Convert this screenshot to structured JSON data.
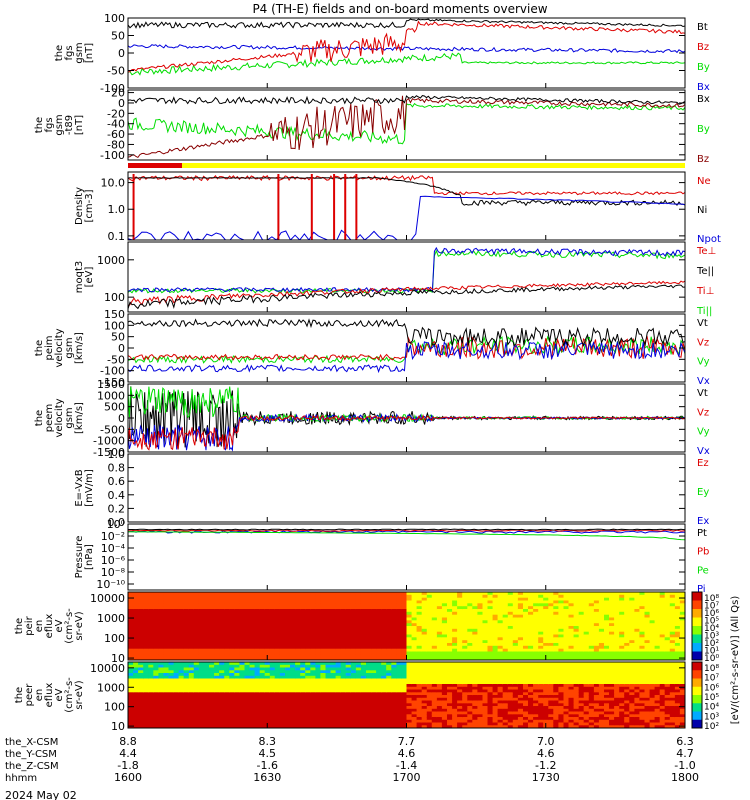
{
  "title": "P4 (TH-E) fields and on-board moments overview",
  "date_label": "2024 May 02",
  "colors": {
    "black": "#000000",
    "red": "#dd0000",
    "green": "#00dd00",
    "blue": "#0000dd",
    "darkred": "#880000",
    "yellow": "#ffff00",
    "barred": "#dd0000"
  },
  "chart_data": {
    "type": "line",
    "x_range": [
      "1600",
      "1800"
    ],
    "time_ticks": [
      "1600",
      "1630",
      "1700",
      "1730",
      "1800"
    ],
    "ephemeris": [
      {
        "label": "the_X-CSM",
        "values": [
          "8.8",
          "8.3",
          "7.7",
          "7.0",
          "6.3"
        ]
      },
      {
        "label": "the_Y-CSM",
        "values": [
          "4.4",
          "4.5",
          "4.6",
          "4.6",
          "4.7"
        ]
      },
      {
        "label": "the_Z-CSM",
        "values": [
          "-1.8",
          "-1.6",
          "-1.4",
          "-1.2",
          "-1.0"
        ]
      },
      {
        "label": "hhmm",
        "values": [
          "1600",
          "1630",
          "1700",
          "1730",
          "1800"
        ]
      }
    ],
    "panels": [
      {
        "id": "fgs-gsm",
        "ylabel": [
          "the",
          "fgs",
          "gsm",
          "[nT]"
        ],
        "ylim": [
          -100,
          100
        ],
        "ticks": [
          "100",
          "50",
          "0",
          "-50",
          "-100"
        ],
        "legend": [
          {
            "text": "Bt",
            "color": "#000000"
          },
          {
            "text": "Bz",
            "color": "#dd0000"
          },
          {
            "text": "By",
            "color": "#00dd00"
          },
          {
            "text": "Bx",
            "color": "#0000dd"
          }
        ]
      },
      {
        "id": "fgs-gsm-t89",
        "ylabel": [
          "the",
          "fgs",
          "gsm",
          "-t89",
          "[nT]"
        ],
        "ylim": [
          -110,
          25
        ],
        "ticks": [
          "20",
          "0",
          "-20",
          "-40",
          "-60",
          "-80",
          "-100"
        ],
        "legend": [
          {
            "text": "Bx",
            "color": "#000000"
          },
          {
            "text": "By",
            "color": "#00dd00"
          },
          {
            "text": "Bz",
            "color": "#880000"
          }
        ]
      },
      {
        "id": "density",
        "ylabel": [
          "Density",
          "[cm-3]"
        ],
        "log": true,
        "ylim": [
          0.07,
          25
        ],
        "ticks": [
          "10.0",
          "1.0",
          "0.1"
        ],
        "legend": [
          {
            "text": "Ne",
            "color": "#dd0000"
          },
          {
            "text": "Ni",
            "color": "#000000"
          },
          {
            "text": "Npot",
            "color": "#0000dd"
          }
        ]
      },
      {
        "id": "temperature",
        "ylabel": [
          "moqt3",
          "[eV]"
        ],
        "log": true,
        "ylim": [
          40,
          3000
        ],
        "ticks": [
          "1000",
          "100"
        ],
        "legend": [
          {
            "text": "Te⊥",
            "color": "#dd0000"
          },
          {
            "text": "Te||",
            "color": "#000000"
          },
          {
            "text": "Ti⊥",
            "color": "#dd0000"
          },
          {
            "text": "Ti||",
            "color": "#00dd00"
          }
        ]
      },
      {
        "id": "peim-velocity",
        "ylabel": [
          "the",
          "peim",
          "velocity",
          "gsm",
          "[km/s]"
        ],
        "ylim": [
          -150,
          150
        ],
        "ticks": [
          "150",
          "100",
          "50",
          "0",
          "-50",
          "-100",
          "-150"
        ],
        "legend": [
          {
            "text": "Vt",
            "color": "#000000"
          },
          {
            "text": "Vz",
            "color": "#dd0000"
          },
          {
            "text": "Vy",
            "color": "#00dd00"
          },
          {
            "text": "Vx",
            "color": "#0000dd"
          }
        ]
      },
      {
        "id": "peem-velocity",
        "ylabel": [
          "the",
          "peem",
          "velocity",
          "gsm",
          "[km/s]"
        ],
        "ylim": [
          -1500,
          1500
        ],
        "ticks": [
          "1500",
          "1000",
          "500",
          "0",
          "-500",
          "-1000",
          "-1500"
        ],
        "legend": [
          {
            "text": "Vt",
            "color": "#000000"
          },
          {
            "text": "Vz",
            "color": "#dd0000"
          },
          {
            "text": "Vy",
            "color": "#00dd00"
          },
          {
            "text": "Vx",
            "color": "#0000dd"
          }
        ]
      },
      {
        "id": "e-field",
        "ylabel": [
          "E=-VxB",
          "[mV/m]"
        ],
        "ylim": [
          0,
          1
        ],
        "ticks": [
          "1.0",
          "0.8",
          "0.6",
          "0.4",
          "0.2",
          "0.0"
        ],
        "legend": [
          {
            "text": "Ez",
            "color": "#dd0000"
          },
          {
            "text": "Ey",
            "color": "#00dd00"
          },
          {
            "text": "Ex",
            "color": "#0000dd"
          }
        ]
      },
      {
        "id": "pressure",
        "ylabel": [
          "Pressure",
          "[nPa]"
        ],
        "log": true,
        "ylim": [
          1e-11,
          1
        ],
        "ticks": [
          "10⁰",
          "10⁻²",
          "10⁻⁴",
          "10⁻⁶",
          "10⁻⁸",
          "10⁻¹⁰"
        ],
        "legend": [
          {
            "text": "Pt",
            "color": "#000000"
          },
          {
            "text": "Pb",
            "color": "#dd0000"
          },
          {
            "text": "Pe",
            "color": "#00dd00"
          },
          {
            "text": "Pi",
            "color": "#0000dd"
          }
        ]
      },
      {
        "id": "peir-spec",
        "ylabel": [
          "the",
          "peir",
          "en",
          "eflux",
          "eV",
          "(cm²-s-",
          "sr-eV)"
        ],
        "log": true,
        "ylim": [
          8,
          20000
        ],
        "ticks": [
          "10000",
          "1000",
          "100",
          "10"
        ],
        "type": "heatmap"
      },
      {
        "id": "peer-spec",
        "ylabel": [
          "the",
          "peer",
          "en",
          "eflux",
          "eV",
          "(cm²-s-",
          "sr-eV)"
        ],
        "log": true,
        "ylim": [
          8,
          20000
        ],
        "ticks": [
          "10000",
          "1000",
          "100",
          "10"
        ],
        "type": "heatmap"
      }
    ],
    "colorbar": {
      "label": "[eV/(cm²-s-sr-eV)] (All Qs)",
      "ticks_top": [
        "10⁸",
        "10⁷",
        "10⁶",
        "10⁵",
        "10⁴",
        "10³",
        "10²",
        "10¹",
        "10⁰"
      ],
      "ticks_bottom": [
        "10⁸",
        "10⁷",
        "10⁶",
        "10⁵",
        "10⁴",
        "10³",
        "10²"
      ]
    }
  }
}
